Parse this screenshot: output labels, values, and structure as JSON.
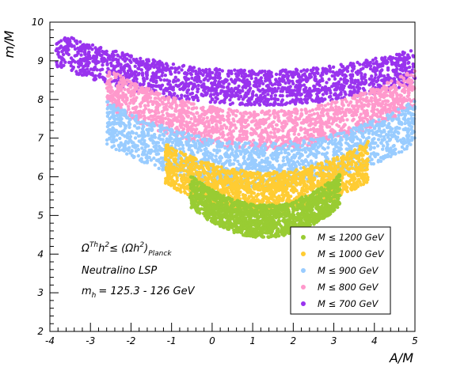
{
  "chart_data": {
    "type": "scatter",
    "xlabel": "A/M",
    "ylabel": "m/M",
    "xlim": [
      -4,
      5
    ],
    "ylim": [
      2,
      10
    ],
    "x_ticks": [
      "-4",
      "-3",
      "-2",
      "-1",
      "0",
      "1",
      "2",
      "3",
      "4",
      "5"
    ],
    "y_ticks": [
      "2",
      "3",
      "4",
      "5",
      "6",
      "7",
      "8",
      "9",
      "10"
    ],
    "annotations": {
      "constraint_prefix": "Ω",
      "constraint_sup": "Th",
      "constraint_mid1": "h",
      "constraint_sup2": "2",
      "constraint_mid2": "≤ (Ωh",
      "constraint_sup3": "2",
      "constraint_mid3": ")",
      "constraint_sub": "Planck",
      "lsp": "Neutralino LSP",
      "mh_prefix": "m",
      "mh_sub": "h",
      "mh_value": "= 125.3 - 126 GeV"
    },
    "legend_position": "bottom-right",
    "series": [
      {
        "name": "M ≤ 1200 GeV",
        "color": "#99cc33",
        "band": {
          "x_min": -0.55,
          "x_max": 3.15,
          "y_center_min": 4.85,
          "y_center_at_edges": 5.65,
          "thickness": 0.85,
          "x_center": 1.3
        }
      },
      {
        "name": "M ≤ 1000 GeV",
        "color": "#ffcc33",
        "band": {
          "x_min": -1.15,
          "x_max": 3.85,
          "y_center_min": 5.6,
          "y_center_at_edges": 6.4,
          "thickness": 1.05,
          "x_center": 1.3
        }
      },
      {
        "name": "M ≤ 900 GeV",
        "color": "#99ccff",
        "band": {
          "x_min": -2.6,
          "x_max": 5.0,
          "y_center_min": 6.3,
          "y_center_at_edges": 7.4,
          "thickness": 1.15,
          "x_center": 1.2
        }
      },
      {
        "name": "M ≤ 800 GeV",
        "color": "#ff99cc",
        "band": {
          "x_min": -2.6,
          "x_max": 5.0,
          "y_center_min": 7.2,
          "y_center_at_edges": 8.3,
          "thickness": 1.0,
          "x_center": 1.2
        }
      },
      {
        "name": "M ≤ 700 GeV",
        "color": "#9933ee",
        "band": {
          "x_min": -3.85,
          "x_max": 5.0,
          "y_center_min": 8.3,
          "y_center_at_edges": 9.3,
          "thickness": 0.9,
          "x_center": 1.2
        }
      }
    ]
  }
}
